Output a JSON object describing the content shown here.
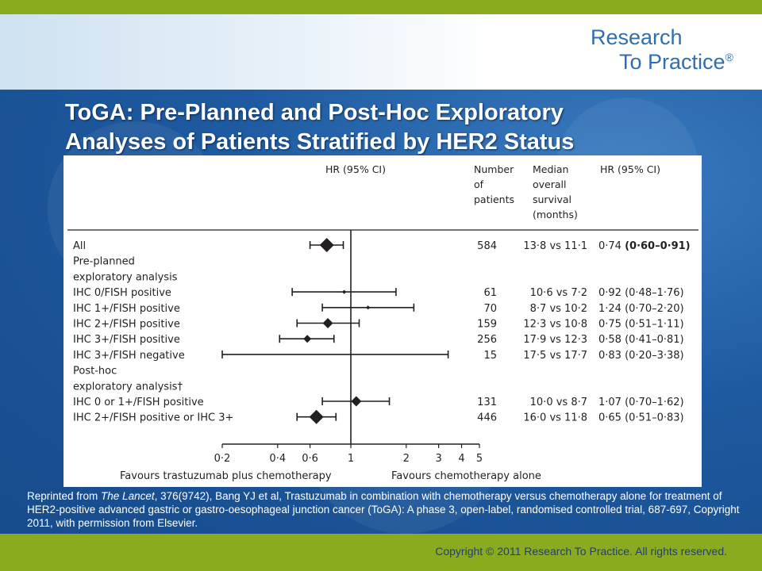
{
  "logo": {
    "line1": "Research",
    "line2": "To Practice",
    "mark": "®"
  },
  "title": {
    "line1": "ToGA: Pre-Planned and Post-Hoc Exploratory",
    "line2": "Analyses of Patients Stratified by HER2 Status"
  },
  "chart_data": {
    "type": "forest",
    "axis_scale": "log",
    "xlim": [
      0.2,
      5
    ],
    "reference_line": 1,
    "x_ticks": [
      "0·2",
      "0·4",
      "0·6",
      "1",
      "2",
      "3",
      "4",
      "5"
    ],
    "x_tick_values": [
      0.2,
      0.4,
      0.6,
      1,
      2,
      3,
      4,
      5
    ],
    "favours_left": "Favours trastuzumab plus chemotherapy",
    "favours_right": "Favours chemotherapy alone",
    "column_headers": {
      "plot": "HR (95% CI)",
      "n": [
        "Number",
        "of",
        "patients"
      ],
      "median": [
        "Median",
        "overall",
        "survival",
        "(months)"
      ],
      "hr": "HR (95% CI)"
    },
    "rows": [
      {
        "label": "All",
        "n": "584",
        "median": "13·8 vs 11·1",
        "hr_text": "0·74 ",
        "ci_text": "(0·60–0·91)",
        "hr": 0.74,
        "lo": 0.6,
        "hi": 0.91,
        "marker": "large",
        "bold_ci": true
      },
      {
        "label": "Pre-planned",
        "header": true
      },
      {
        "label": "exploratory analysis",
        "header": true
      },
      {
        "label": "IHC 0/FISH positive",
        "n": "61",
        "median": "10·6 vs 7·2",
        "hr_text": "0·92 ",
        "ci_text": "(0·48–1·76)",
        "hr": 0.92,
        "lo": 0.48,
        "hi": 1.76,
        "marker": "dot"
      },
      {
        "label": "IHC 1+/FISH positive",
        "n": "70",
        "median": "8·7 vs 10·2",
        "hr_text": "1·24 ",
        "ci_text": "(0·70–2·20)",
        "hr": 1.24,
        "lo": 0.7,
        "hi": 2.2,
        "marker": "dot"
      },
      {
        "label": "IHC 2+/FISH positive",
        "n": "159",
        "median": "12·3 vs 10·8",
        "hr_text": "0·75 ",
        "ci_text": "(0·51–1·11)",
        "hr": 0.75,
        "lo": 0.51,
        "hi": 1.11,
        "marker": "medium"
      },
      {
        "label": "IHC 3+/FISH positive",
        "n": "256",
        "median": "17·9 vs 12·3",
        "hr_text": "0·58 ",
        "ci_text": "(0·41–0·81)",
        "hr": 0.58,
        "lo": 0.41,
        "hi": 0.81,
        "marker": "small"
      },
      {
        "label": "IHC 3+/FISH negative",
        "n": "15",
        "median": "17·5 vs 17·7",
        "hr_text": "0·83 ",
        "ci_text": "(0·20–3·38)",
        "hr": 0.83,
        "lo": 0.2,
        "hi": 3.38,
        "marker": "none"
      },
      {
        "label": "Post-hoc",
        "header": true
      },
      {
        "label": "exploratory analysis†",
        "header": true
      },
      {
        "label": "IHC 0 or 1+/FISH positive",
        "n": "131",
        "median": "10·0 vs 8·7",
        "hr_text": "1·07 ",
        "ci_text": "(0·70–1·62)",
        "hr": 1.07,
        "lo": 0.7,
        "hi": 1.62,
        "marker": "medium"
      },
      {
        "label": "IHC 2+/FISH positive or IHC 3+",
        "n": "446",
        "median": "16·0 vs 11·8",
        "hr_text": "0·65 ",
        "ci_text": "(0·51–0·83)",
        "hr": 0.65,
        "lo": 0.51,
        "hi": 0.83,
        "marker": "large"
      }
    ]
  },
  "citation": {
    "prefix": "Reprinted from ",
    "journal": "The Lancet",
    "rest": ", 376(9742), Bang YJ et al, Trastuzumab in combination with chemotherapy versus chemotherapy alone for treatment of HER2-positive advanced gastric or gastro-oesophageal junction cancer (ToGA): A phase 3, open-label, randomised controlled trial, 687-697, Copyright 2011, with permission from Elsevier."
  },
  "footer": {
    "copyright": "Copyright © 2011 Research To Practice. All rights reserved."
  },
  "colors": {
    "green": "#8aab1f",
    "blue": "#1e5aa0",
    "logo": "#2f6fb0"
  }
}
